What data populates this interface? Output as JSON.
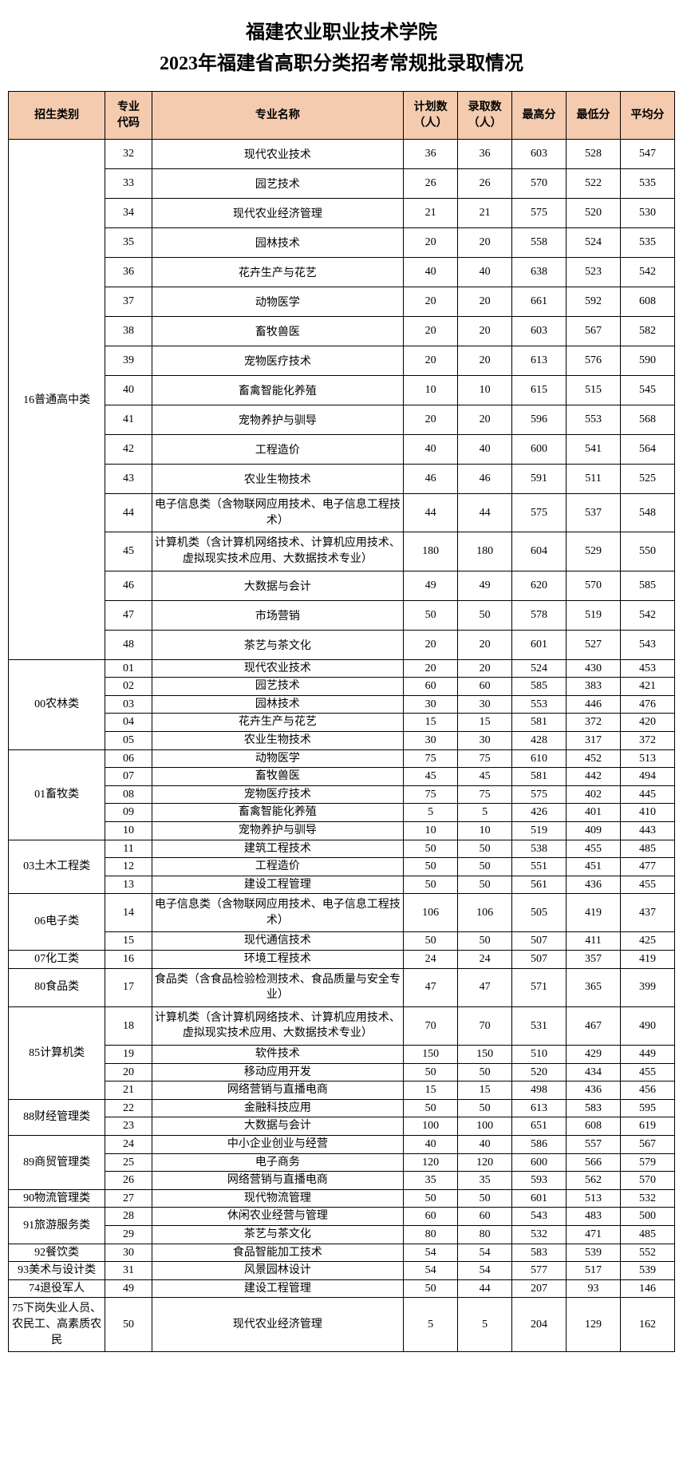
{
  "title": "福建农业职业技术学院",
  "subtitle": "2023年福建省高职分类招考常规批录取情况",
  "headers": {
    "category": "招生类别",
    "code": "专业\n代码",
    "name": "专业名称",
    "plan": "计划数\n（人）",
    "admit": "录取数\n（人）",
    "max": "最高分",
    "min": "最低分",
    "avg": "平均分"
  },
  "header_bg": "#f4cbae",
  "border_color": "#000000",
  "groups": [
    {
      "cat": "16普通高中类",
      "rowClass": "tall",
      "rows": [
        [
          "32",
          "现代农业技术",
          "36",
          "36",
          "603",
          "528",
          "547"
        ],
        [
          "33",
          "园艺技术",
          "26",
          "26",
          "570",
          "522",
          "535"
        ],
        [
          "34",
          "现代农业经济管理",
          "21",
          "21",
          "575",
          "520",
          "530"
        ],
        [
          "35",
          "园林技术",
          "20",
          "20",
          "558",
          "524",
          "535"
        ],
        [
          "36",
          "花卉生产与花艺",
          "40",
          "40",
          "638",
          "523",
          "542"
        ],
        [
          "37",
          "动物医学",
          "20",
          "20",
          "661",
          "592",
          "608"
        ],
        [
          "38",
          "畜牧兽医",
          "20",
          "20",
          "603",
          "567",
          "582"
        ],
        [
          "39",
          "宠物医疗技术",
          "20",
          "20",
          "613",
          "576",
          "590"
        ],
        [
          "40",
          "畜禽智能化养殖",
          "10",
          "10",
          "615",
          "515",
          "545"
        ],
        [
          "41",
          "宠物养护与驯导",
          "20",
          "20",
          "596",
          "553",
          "568"
        ],
        [
          "42",
          "工程造价",
          "40",
          "40",
          "600",
          "541",
          "564"
        ],
        [
          "43",
          "农业生物技术",
          "46",
          "46",
          "591",
          "511",
          "525"
        ],
        [
          "44",
          "电子信息类（含物联网应用技术、电子信息工程技术）",
          "44",
          "44",
          "575",
          "537",
          "548",
          "multi"
        ],
        [
          "45",
          "计算机类（含计算机网络技术、计算机应用技术、虚拟现实技术应用、大数据技术专业）",
          "180",
          "180",
          "604",
          "529",
          "550",
          "multi"
        ],
        [
          "46",
          "大数据与会计",
          "49",
          "49",
          "620",
          "570",
          "585"
        ],
        [
          "47",
          "市场营销",
          "50",
          "50",
          "578",
          "519",
          "542"
        ],
        [
          "48",
          "茶艺与茶文化",
          "20",
          "20",
          "601",
          "527",
          "543"
        ]
      ]
    },
    {
      "cat": "00农林类",
      "rowClass": "short",
      "rows": [
        [
          "01",
          "现代农业技术",
          "20",
          "20",
          "524",
          "430",
          "453"
        ],
        [
          "02",
          "园艺技术",
          "60",
          "60",
          "585",
          "383",
          "421"
        ],
        [
          "03",
          "园林技术",
          "30",
          "30",
          "553",
          "446",
          "476"
        ],
        [
          "04",
          "花卉生产与花艺",
          "15",
          "15",
          "581",
          "372",
          "420"
        ],
        [
          "05",
          "农业生物技术",
          "30",
          "30",
          "428",
          "317",
          "372"
        ]
      ]
    },
    {
      "cat": "01畜牧类",
      "rowClass": "short",
      "rows": [
        [
          "06",
          "动物医学",
          "75",
          "75",
          "610",
          "452",
          "513"
        ],
        [
          "07",
          "畜牧兽医",
          "45",
          "45",
          "581",
          "442",
          "494"
        ],
        [
          "08",
          "宠物医疗技术",
          "75",
          "75",
          "575",
          "402",
          "445"
        ],
        [
          "09",
          "畜禽智能化养殖",
          "5",
          "5",
          "426",
          "401",
          "410"
        ],
        [
          "10",
          "宠物养护与驯导",
          "10",
          "10",
          "519",
          "409",
          "443"
        ]
      ]
    },
    {
      "cat": "03土木工程类",
      "rowClass": "short",
      "rows": [
        [
          "11",
          "建筑工程技术",
          "50",
          "50",
          "538",
          "455",
          "485"
        ],
        [
          "12",
          "工程造价",
          "50",
          "50",
          "551",
          "451",
          "477"
        ],
        [
          "13",
          "建设工程管理",
          "50",
          "50",
          "561",
          "436",
          "455"
        ]
      ]
    },
    {
      "cat": "06电子类",
      "rowClass": "short",
      "rows": [
        [
          "14",
          "电子信息类（含物联网应用技术、电子信息工程技术）",
          "106",
          "106",
          "505",
          "419",
          "437",
          "multi"
        ],
        [
          "15",
          "现代通信技术",
          "50",
          "50",
          "507",
          "411",
          "425"
        ]
      ]
    },
    {
      "cat": "07化工类",
      "rowClass": "short",
      "rows": [
        [
          "16",
          "环境工程技术",
          "24",
          "24",
          "507",
          "357",
          "419"
        ]
      ]
    },
    {
      "cat": "80食品类",
      "rowClass": "short",
      "rows": [
        [
          "17",
          "食品类（含食品检验检测技术、食品质量与安全专业）",
          "47",
          "47",
          "571",
          "365",
          "399",
          "multi"
        ]
      ]
    },
    {
      "cat": "85计算机类",
      "rowClass": "short",
      "rows": [
        [
          "18",
          "计算机类（含计算机网络技术、计算机应用技术、虚拟现实技术应用、大数据技术专业）",
          "70",
          "70",
          "531",
          "467",
          "490",
          "multi"
        ],
        [
          "19",
          "软件技术",
          "150",
          "150",
          "510",
          "429",
          "449"
        ],
        [
          "20",
          "移动应用开发",
          "50",
          "50",
          "520",
          "434",
          "455"
        ],
        [
          "21",
          "网络营销与直播电商",
          "15",
          "15",
          "498",
          "436",
          "456"
        ]
      ]
    },
    {
      "cat": "88财经管理类",
      "rowClass": "short",
      "rows": [
        [
          "22",
          "金融科技应用",
          "50",
          "50",
          "613",
          "583",
          "595"
        ],
        [
          "23",
          "大数据与会计",
          "100",
          "100",
          "651",
          "608",
          "619"
        ]
      ]
    },
    {
      "cat": "89商贸管理类",
      "rowClass": "short",
      "rows": [
        [
          "24",
          "中小企业创业与经营",
          "40",
          "40",
          "586",
          "557",
          "567"
        ],
        [
          "25",
          "电子商务",
          "120",
          "120",
          "600",
          "566",
          "579"
        ],
        [
          "26",
          "网络营销与直播电商",
          "35",
          "35",
          "593",
          "562",
          "570"
        ]
      ]
    },
    {
      "cat": "90物流管理类",
      "rowClass": "short",
      "rows": [
        [
          "27",
          "现代物流管理",
          "50",
          "50",
          "601",
          "513",
          "532"
        ]
      ]
    },
    {
      "cat": "91旅游服务类",
      "rowClass": "short",
      "rows": [
        [
          "28",
          "休闲农业经营与管理",
          "60",
          "60",
          "543",
          "483",
          "500"
        ],
        [
          "29",
          "茶艺与茶文化",
          "80",
          "80",
          "532",
          "471",
          "485"
        ]
      ]
    },
    {
      "cat": "92餐饮类",
      "rowClass": "short",
      "rows": [
        [
          "30",
          "食品智能加工技术",
          "54",
          "54",
          "583",
          "539",
          "552"
        ]
      ]
    },
    {
      "cat": "93美术与设计类",
      "rowClass": "short",
      "rows": [
        [
          "31",
          "风景园林设计",
          "54",
          "54",
          "577",
          "517",
          "539"
        ]
      ]
    },
    {
      "cat": "74退役军人",
      "rowClass": "short",
      "rows": [
        [
          "49",
          "建设工程管理",
          "50",
          "44",
          "207",
          "93",
          "146"
        ]
      ]
    },
    {
      "cat": "75下岗失业人员、农民工、高素质农民",
      "rowClass": "short",
      "catMulti": true,
      "rows": [
        [
          "50",
          "现代农业经济管理",
          "5",
          "5",
          "204",
          "129",
          "162"
        ]
      ]
    }
  ]
}
